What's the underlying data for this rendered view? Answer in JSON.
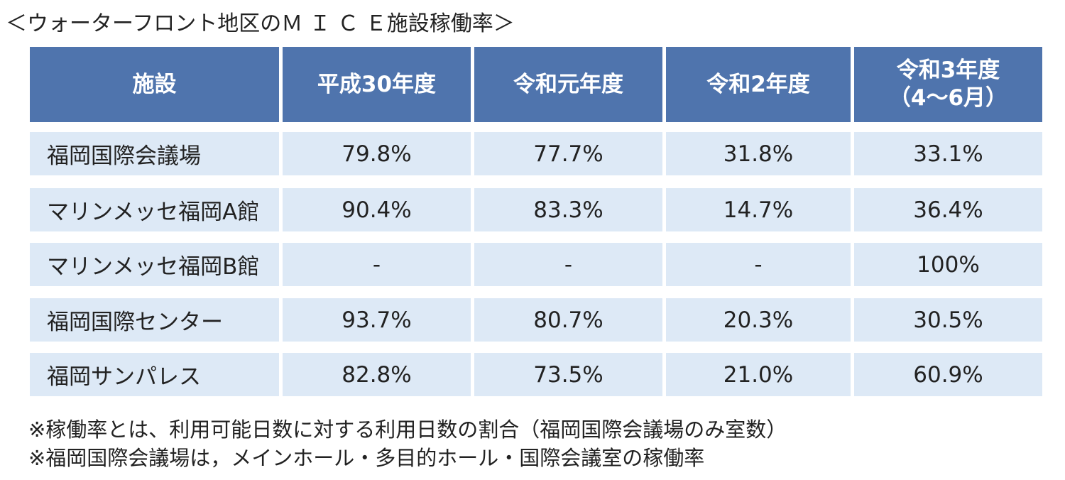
{
  "title": "＜ウォーターフロント地区のＭ Ｉ Ｃ Ｅ施設稼働率＞",
  "table": {
    "columns": [
      "施設",
      "平成30年度",
      "令和元年度",
      "令和2年度",
      [
        "令和3年度",
        "（4～6月）"
      ]
    ],
    "rows": [
      [
        "福岡国際会議場",
        "79.8%",
        "77.7%",
        "31.8%",
        "33.1%"
      ],
      [
        "マリンメッセ福岡A館",
        "90.4%",
        "83.3%",
        "14.7%",
        "36.4%"
      ],
      [
        "マリンメッセ福岡B館",
        "-",
        "-",
        "-",
        "100%"
      ],
      [
        "福岡国際センター",
        "93.7%",
        "80.7%",
        "20.3%",
        "30.5%"
      ],
      [
        "福岡サンパレス",
        "82.8%",
        "73.5%",
        "21.0%",
        "60.9%"
      ]
    ]
  },
  "notes": [
    "※稼働率とは、利用可能日数に対する利用日数の割合（福岡国際会議場のみ室数）",
    "※福岡国際会議場は，メインホール・多目的ホール・国際会議室の稼働率"
  ]
}
